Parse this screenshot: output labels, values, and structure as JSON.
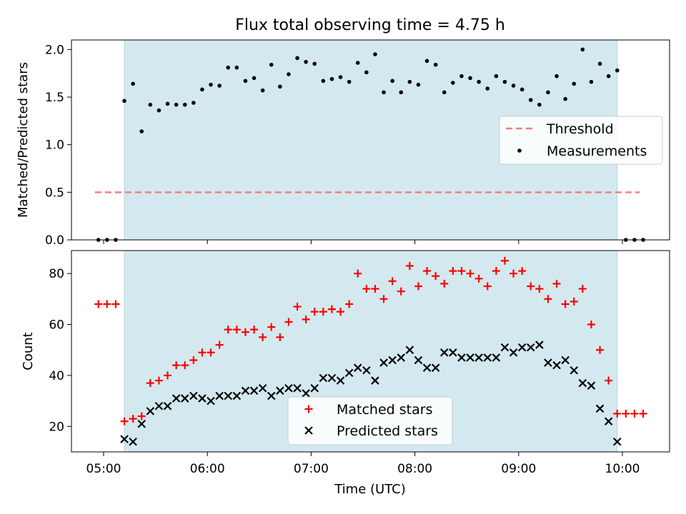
{
  "title": "Flux total observing time = 4.75 h",
  "colors": {
    "shade": "#d4e9ef",
    "threshold": "#f08080",
    "matched": "#ff0000",
    "predicted": "#000000",
    "measurement": "#000000"
  },
  "chart_data": [
    {
      "type": "scatter",
      "panel": "top",
      "ylabel": "Matched/Predicted stars",
      "ylim": [
        0,
        2.1
      ],
      "yticks": [
        "0.0",
        "0.5",
        "1.0",
        "1.5",
        "2.0"
      ],
      "shaded_span": [
        "05:12",
        "09:57"
      ],
      "legend": {
        "placement": "center-right",
        "entries": [
          "Threshold",
          "Measurements"
        ]
      },
      "threshold": {
        "name": "Threshold",
        "y": 0.5,
        "x_range": [
          "04:55",
          "10:10"
        ],
        "style": "dashed"
      },
      "series": [
        {
          "name": "Measurements",
          "x": [
            "04:57",
            "05:02",
            "05:07",
            "05:12",
            "05:17",
            "05:22",
            "05:27",
            "05:32",
            "05:37",
            "05:42",
            "05:47",
            "05:52",
            "05:57",
            "06:02",
            "06:07",
            "06:12",
            "06:17",
            "06:22",
            "06:27",
            "06:32",
            "06:37",
            "06:42",
            "06:47",
            "06:52",
            "06:57",
            "07:02",
            "07:07",
            "07:12",
            "07:17",
            "07:22",
            "07:27",
            "07:32",
            "07:37",
            "07:42",
            "07:47",
            "07:52",
            "07:57",
            "08:02",
            "08:07",
            "08:12",
            "08:17",
            "08:22",
            "08:27",
            "08:32",
            "08:37",
            "08:42",
            "08:47",
            "08:52",
            "08:57",
            "09:02",
            "09:07",
            "09:12",
            "09:17",
            "09:22",
            "09:27",
            "09:32",
            "09:37",
            "09:42",
            "09:47",
            "09:52",
            "09:57",
            "10:02",
            "10:07",
            "10:12"
          ],
          "y": [
            0,
            0,
            0,
            1.46,
            1.64,
            1.14,
            1.42,
            1.36,
            1.43,
            1.42,
            1.42,
            1.44,
            1.58,
            1.63,
            1.62,
            1.81,
            1.81,
            1.67,
            1.7,
            1.57,
            1.84,
            1.61,
            1.74,
            1.91,
            1.87,
            1.85,
            1.67,
            1.69,
            1.71,
            1.66,
            1.86,
            1.76,
            1.95,
            1.55,
            1.67,
            1.55,
            1.66,
            1.63,
            1.88,
            1.84,
            1.55,
            1.65,
            1.72,
            1.7,
            1.66,
            1.59,
            1.72,
            1.66,
            1.62,
            1.58,
            1.47,
            1.42,
            1.55,
            1.72,
            1.48,
            1.64,
            2.0,
            1.66,
            1.85,
            1.72,
            1.78,
            0,
            0,
            0
          ]
        }
      ]
    },
    {
      "type": "scatter",
      "panel": "bottom",
      "xlabel": "Time (UTC)",
      "ylabel": "Count",
      "ylim": [
        10,
        89
      ],
      "yticks": [
        "20",
        "40",
        "60",
        "80"
      ],
      "xticks": [
        "05:00",
        "06:00",
        "07:00",
        "08:00",
        "09:00",
        "10:00"
      ],
      "shaded_span": [
        "05:12",
        "09:57"
      ],
      "legend": {
        "placement": "lower-center",
        "entries": [
          "Matched stars",
          "Predicted stars"
        ]
      },
      "series": [
        {
          "name": "Matched stars",
          "marker": "plus",
          "x": [
            "04:57",
            "05:02",
            "05:07",
            "05:12",
            "05:17",
            "05:22",
            "05:27",
            "05:32",
            "05:37",
            "05:42",
            "05:47",
            "05:52",
            "05:57",
            "06:02",
            "06:07",
            "06:12",
            "06:17",
            "06:22",
            "06:27",
            "06:32",
            "06:37",
            "06:42",
            "06:47",
            "06:52",
            "06:57",
            "07:02",
            "07:07",
            "07:12",
            "07:17",
            "07:22",
            "07:27",
            "07:32",
            "07:37",
            "07:42",
            "07:47",
            "07:52",
            "07:57",
            "08:02",
            "08:07",
            "08:12",
            "08:17",
            "08:22",
            "08:27",
            "08:32",
            "08:37",
            "08:42",
            "08:47",
            "08:52",
            "08:57",
            "09:02",
            "09:07",
            "09:12",
            "09:17",
            "09:22",
            "09:27",
            "09:32",
            "09:37",
            "09:42",
            "09:47",
            "09:52",
            "09:57",
            "10:02",
            "10:07",
            "10:12"
          ],
          "y": [
            68,
            68,
            68,
            22,
            23,
            24,
            37,
            38,
            40,
            44,
            44,
            46,
            49,
            49,
            52,
            58,
            58,
            57,
            58,
            55,
            59,
            55,
            61,
            67,
            62,
            65,
            65,
            66,
            65,
            68,
            80,
            74,
            74,
            70,
            77,
            73,
            83,
            75,
            81,
            79,
            76,
            81,
            81,
            80,
            78,
            75,
            81,
            85,
            80,
            81,
            75,
            74,
            70,
            76,
            68,
            69,
            74,
            60,
            50,
            38,
            25,
            25,
            25,
            25
          ]
        },
        {
          "name": "Predicted stars",
          "marker": "x",
          "x": [
            "05:12",
            "05:17",
            "05:22",
            "05:27",
            "05:32",
            "05:37",
            "05:42",
            "05:47",
            "05:52",
            "05:57",
            "06:02",
            "06:07",
            "06:12",
            "06:17",
            "06:22",
            "06:27",
            "06:32",
            "06:37",
            "06:42",
            "06:47",
            "06:52",
            "06:57",
            "07:02",
            "07:07",
            "07:12",
            "07:17",
            "07:22",
            "07:27",
            "07:32",
            "07:37",
            "07:42",
            "07:47",
            "07:52",
            "07:57",
            "08:02",
            "08:07",
            "08:12",
            "08:17",
            "08:22",
            "08:27",
            "08:32",
            "08:37",
            "08:42",
            "08:47",
            "08:52",
            "08:57",
            "09:02",
            "09:07",
            "09:12",
            "09:17",
            "09:22",
            "09:27",
            "09:32",
            "09:37",
            "09:42",
            "09:47",
            "09:52",
            "09:57"
          ],
          "y": [
            15,
            14,
            21,
            26,
            28,
            28,
            31,
            31,
            32,
            31,
            30,
            32,
            32,
            32,
            34,
            34,
            35,
            32,
            34,
            35,
            35,
            33,
            35,
            39,
            39,
            38,
            41,
            43,
            42,
            38,
            45,
            46,
            47,
            50,
            46,
            43,
            43,
            49,
            49,
            47,
            47,
            47,
            47,
            47,
            51,
            49,
            51,
            51,
            52,
            45,
            44,
            46,
            42,
            37,
            36,
            27,
            22,
            14
          ]
        }
      ]
    }
  ]
}
